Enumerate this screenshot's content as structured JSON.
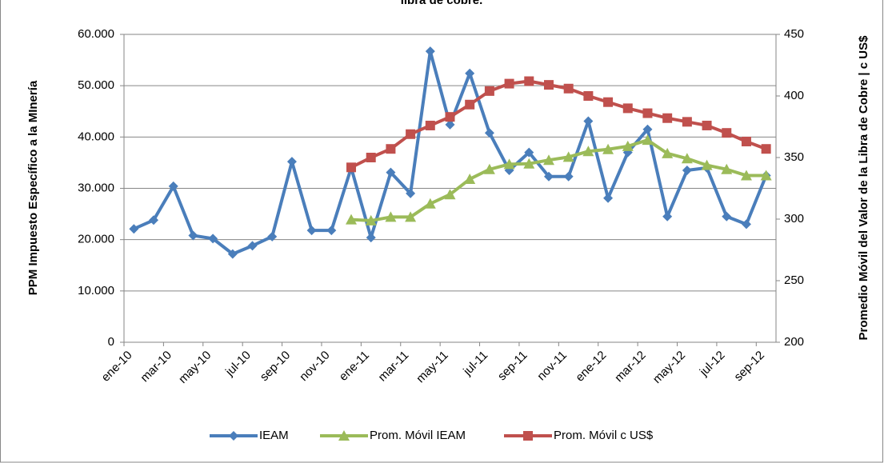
{
  "chart_data": {
    "type": "line",
    "title": "libra de cobre.",
    "y_label": "PPM Impuesto Específico a la MInería",
    "y2_label": "Promedio Móvil del Valor de la Libra de Cobre | c US$",
    "categories": [
      "ene-10",
      null,
      "mar-10",
      null,
      "may-10",
      null,
      "jul-10",
      null,
      "sep-10",
      null,
      "nov-10",
      null,
      "ene-11",
      null,
      "mar-11",
      null,
      "may-11",
      null,
      "jul-11",
      null,
      "sep-11",
      null,
      "nov-11",
      null,
      "ene-12",
      null,
      "mar-12",
      null,
      "may-12",
      null,
      "jul-12",
      null,
      "sep-12"
    ],
    "series": [
      {
        "name": "IEAM",
        "color": "#4a7ebb",
        "marker": "diamond",
        "values": [
          22100,
          23800,
          30400,
          20800,
          20200,
          17200,
          18800,
          20600,
          35200,
          21800,
          21800,
          34000,
          20400,
          33100,
          29000,
          56700,
          42400,
          52400,
          40800,
          33500,
          37000,
          32300,
          32300,
          43100,
          28100,
          37000,
          41500,
          24500,
          33500,
          34000,
          24500,
          23000,
          32500
        ]
      },
      {
        "name": "Prom. Móvil IEAM",
        "color": "#9bbb59",
        "marker": "triangle",
        "values": [
          null,
          null,
          null,
          null,
          null,
          null,
          null,
          null,
          null,
          null,
          null,
          23900,
          23700,
          24400,
          24400,
          27000,
          28800,
          31800,
          33700,
          34700,
          34800,
          35500,
          36100,
          37200,
          37600,
          38200,
          39400,
          36800,
          35800,
          34500,
          33700,
          32500,
          32500
        ]
      },
      {
        "name": "Prom. Móvil c US$",
        "color": "#c0504d",
        "marker": "square",
        "axis": "y2",
        "values": [
          null,
          null,
          null,
          null,
          null,
          null,
          null,
          null,
          null,
          null,
          null,
          342,
          350,
          357,
          369,
          376,
          383,
          393,
          404,
          410,
          412,
          409,
          406,
          400,
          395,
          390,
          386,
          382,
          379,
          376,
          370,
          363,
          357
        ]
      }
    ],
    "ylim": [
      0,
      60000
    ],
    "yticks": [
      0,
      {
        "value": 10000,
        "label": "10.000"
      },
      {
        "value": 20000,
        "label": "20.000"
      },
      {
        "value": 30000,
        "label": "30.000"
      },
      {
        "value": 40000,
        "label": "40.000"
      },
      {
        "value": 50000,
        "label": "50.000"
      },
      {
        "value": 60000,
        "label": "60.000"
      }
    ],
    "y2lim": [
      200,
      450
    ],
    "y2ticks": [
      200,
      250,
      300,
      350,
      400,
      450
    ],
    "grid": true,
    "legend": "bottom"
  }
}
